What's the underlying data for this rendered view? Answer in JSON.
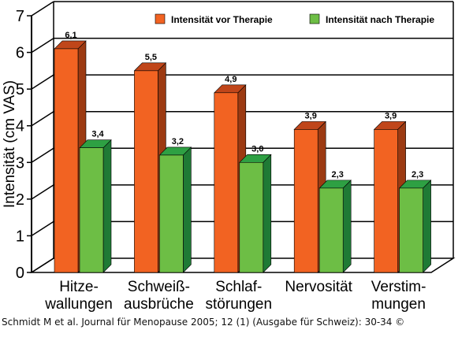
{
  "chart_data": {
    "type": "bar",
    "style": "3d-clustered",
    "title": "",
    "ylabel": "Intensität (cm VAS)",
    "xlabel": "",
    "ylim": [
      0,
      7
    ],
    "yticks": [
      "0",
      "1",
      "2",
      "3",
      "4",
      "5",
      "6",
      "7"
    ],
    "grid": true,
    "legend_position": "top-right",
    "categories": [
      [
        "Hitze-",
        "wallungen"
      ],
      [
        "Schweiß-",
        "ausbrüche"
      ],
      [
        "Schlaf-",
        "störungen"
      ],
      [
        "Nervosität"
      ],
      [
        "Verstim-",
        "mungen"
      ]
    ],
    "series": [
      {
        "name": "Intensität vor Therapie",
        "values": [
          6.1,
          5.5,
          4.9,
          3.9,
          3.9
        ],
        "labels": [
          "6,1",
          "5,5",
          "4,9",
          "3,9",
          "3,9"
        ],
        "color": "#f26322",
        "side_color": "#9c3a12",
        "top_color": "#c0461a"
      },
      {
        "name": "Intensität nach Therapie",
        "values": [
          3.4,
          3.2,
          3.0,
          2.3,
          2.3
        ],
        "labels": [
          "3,4",
          "3,2",
          "3,0",
          "2,3",
          "2,3"
        ],
        "color": "#6dbe45",
        "side_color": "#1f7a35",
        "top_color": "#2ea043"
      }
    ]
  },
  "caption": "Schmidt M et al. Journal für Menopause 2005; 12 (1) (Ausgabe für Schweiz): 30-34 ©"
}
